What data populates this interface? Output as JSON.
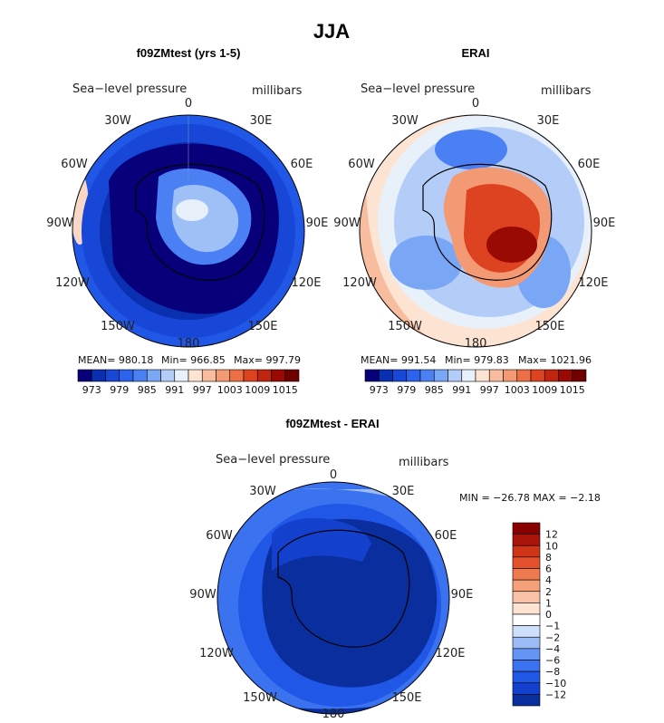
{
  "page_title": "JJA",
  "colors": {
    "palette": [
      "#08007a",
      "#0a2fb0",
      "#1846d6",
      "#2c62ec",
      "#4a80f4",
      "#7aa6f6",
      "#b3cdf8",
      "#e8f0fa",
      "#fde3d2",
      "#f8bc9e",
      "#f39a75",
      "#ec6f45",
      "#dd4321",
      "#c0250f",
      "#990a05",
      "#700000"
    ],
    "diff_palette": [
      "#0a2e9e",
      "#1340cc",
      "#2157e6",
      "#3a72f0",
      "#6595f4",
      "#9bbcf7",
      "#cfe0fa",
      "#ffffff",
      "#fde3d2",
      "#f9c2a6",
      "#f5a079",
      "#ef7a50",
      "#e5512c",
      "#cf3416",
      "#a8130a",
      "#8a0000"
    ]
  },
  "chart_data": [
    {
      "type": "heatmap",
      "title": "f09ZMtest (yrs 1-5)",
      "subtitle_left": "Sea−level pressure",
      "subtitle_right": "millibars",
      "longitude_labels": {
        "top": "0",
        "ne": "30E",
        "ene": "60E",
        "e": "90E",
        "ese": "120E",
        "se": "150E",
        "bottom": "180",
        "sw": "150W",
        "wsw": "120W",
        "w": "90W",
        "wnw": "60W",
        "nw": "30W"
      },
      "stats": {
        "mean": "MEAN=  980.18",
        "min": "Min=  966.85",
        "max": "Max=  997.79"
      },
      "colorbar_ticks": [
        "973",
        "979",
        "985",
        "991",
        "997",
        "1003",
        "1009",
        "1015"
      ]
    },
    {
      "type": "heatmap",
      "title": "ERAI",
      "subtitle_left": "Sea−level pressure",
      "subtitle_right": "millibars",
      "longitude_labels": {
        "top": "0",
        "ne": "30E",
        "ene": "60E",
        "e": "90E",
        "ese": "120E",
        "se": "150E",
        "bottom": "180",
        "sw": "150W",
        "wsw": "120W",
        "w": "90W",
        "wnw": "60W",
        "nw": "30W"
      },
      "stats": {
        "mean": "MEAN=  991.54",
        "min": "Min=  979.83",
        "max": "Max=  1021.96"
      },
      "colorbar_ticks": [
        "973",
        "979",
        "985",
        "991",
        "997",
        "1003",
        "1009",
        "1015"
      ]
    },
    {
      "type": "heatmap",
      "title": "f09ZMtest - ERAI",
      "subtitle_left": "Sea−level pressure",
      "subtitle_right": "millibars",
      "longitude_labels": {
        "top": "0",
        "ne": "30E",
        "ene": "60E",
        "e": "90E",
        "ese": "120E",
        "se": "150E",
        "bottom": "180",
        "sw": "150W",
        "wsw": "120W",
        "w": "90W",
        "wnw": "60W",
        "nw": "30W"
      },
      "stats": {
        "minmax": "MIN =  −26.78  MAX =   −2.18"
      },
      "colorbar_ticks": [
        "12",
        "10",
        "8",
        "6",
        "4",
        "2",
        "1",
        "0",
        "−1",
        "−2",
        "−4",
        "−6",
        "−8",
        "−10",
        "−12"
      ]
    }
  ]
}
